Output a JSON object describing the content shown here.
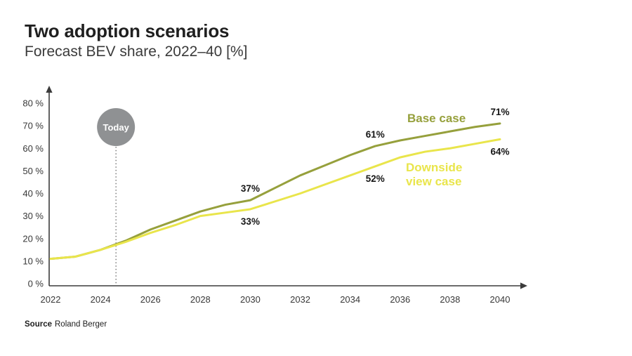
{
  "header": {
    "title": "Two adoption scenarios",
    "subtitle": "Forecast BEV share, 2022–40 [%]"
  },
  "footer": {
    "source_label": "Source",
    "source_value": "Roland Berger"
  },
  "colors": {
    "base_case": "#96a03c",
    "downside_case": "#e9e54b",
    "today_circle": "#8f9193",
    "axis": "#3b3b3b",
    "label_text": "#161616"
  },
  "chart_data": {
    "type": "line",
    "title": "Two adoption scenarios",
    "subtitle": "Forecast BEV share, 2022–40 [%]",
    "xlabel": "",
    "ylabel": "",
    "xlim": [
      2022,
      2040
    ],
    "ylim": [
      0,
      80
    ],
    "grid": false,
    "legend_position": "inline-right",
    "x": [
      2022,
      2023,
      2024,
      2025,
      2026,
      2027,
      2028,
      2029,
      2030,
      2031,
      2032,
      2033,
      2034,
      2035,
      2036,
      2037,
      2038,
      2039,
      2040
    ],
    "series": [
      {
        "name": "Base case",
        "color": "#96a03c",
        "values": [
          11,
          12,
          15,
          19,
          24,
          28,
          32,
          35,
          37,
          42.5,
          48,
          52.5,
          57,
          61,
          63.5,
          65.5,
          67.5,
          69.5,
          71
        ]
      },
      {
        "name": "Downside view case",
        "color": "#e9e54b",
        "values": [
          11,
          12,
          15,
          18.5,
          22.5,
          26,
          30,
          31.5,
          33,
          36.5,
          40,
          44,
          48,
          52,
          56,
          58.5,
          60,
          62,
          64
        ]
      }
    ],
    "x_ticks": [
      2022,
      2024,
      2026,
      2028,
      2030,
      2032,
      2034,
      2036,
      2038,
      2040
    ],
    "y_ticks": [
      {
        "value": 0,
        "label": "0 %"
      },
      {
        "value": 10,
        "label": "10 %"
      },
      {
        "value": 20,
        "label": "20 %"
      },
      {
        "value": 30,
        "label": "30 %"
      },
      {
        "value": 40,
        "label": "40 %"
      },
      {
        "value": 50,
        "label": "50 %"
      },
      {
        "value": 60,
        "label": "60 %"
      },
      {
        "value": 70,
        "label": "70 %"
      },
      {
        "value": 80,
        "label": "80 %"
      }
    ],
    "point_labels": [
      {
        "series": "Base case",
        "year": 2030,
        "value": 37,
        "label": "37%"
      },
      {
        "series": "Base case",
        "year": 2035,
        "value": 61,
        "label": "61%"
      },
      {
        "series": "Base case",
        "year": 2040,
        "value": 71,
        "label": "71%"
      },
      {
        "series": "Downside view case",
        "year": 2030,
        "value": 33,
        "label": "33%"
      },
      {
        "series": "Downside view case",
        "year": 2035,
        "value": 52,
        "label": "52%"
      },
      {
        "series": "Downside view case",
        "year": 2040,
        "value": 64,
        "label": "64%"
      }
    ],
    "annotations": {
      "today": {
        "label": "Today",
        "year": 2024.62
      }
    }
  }
}
